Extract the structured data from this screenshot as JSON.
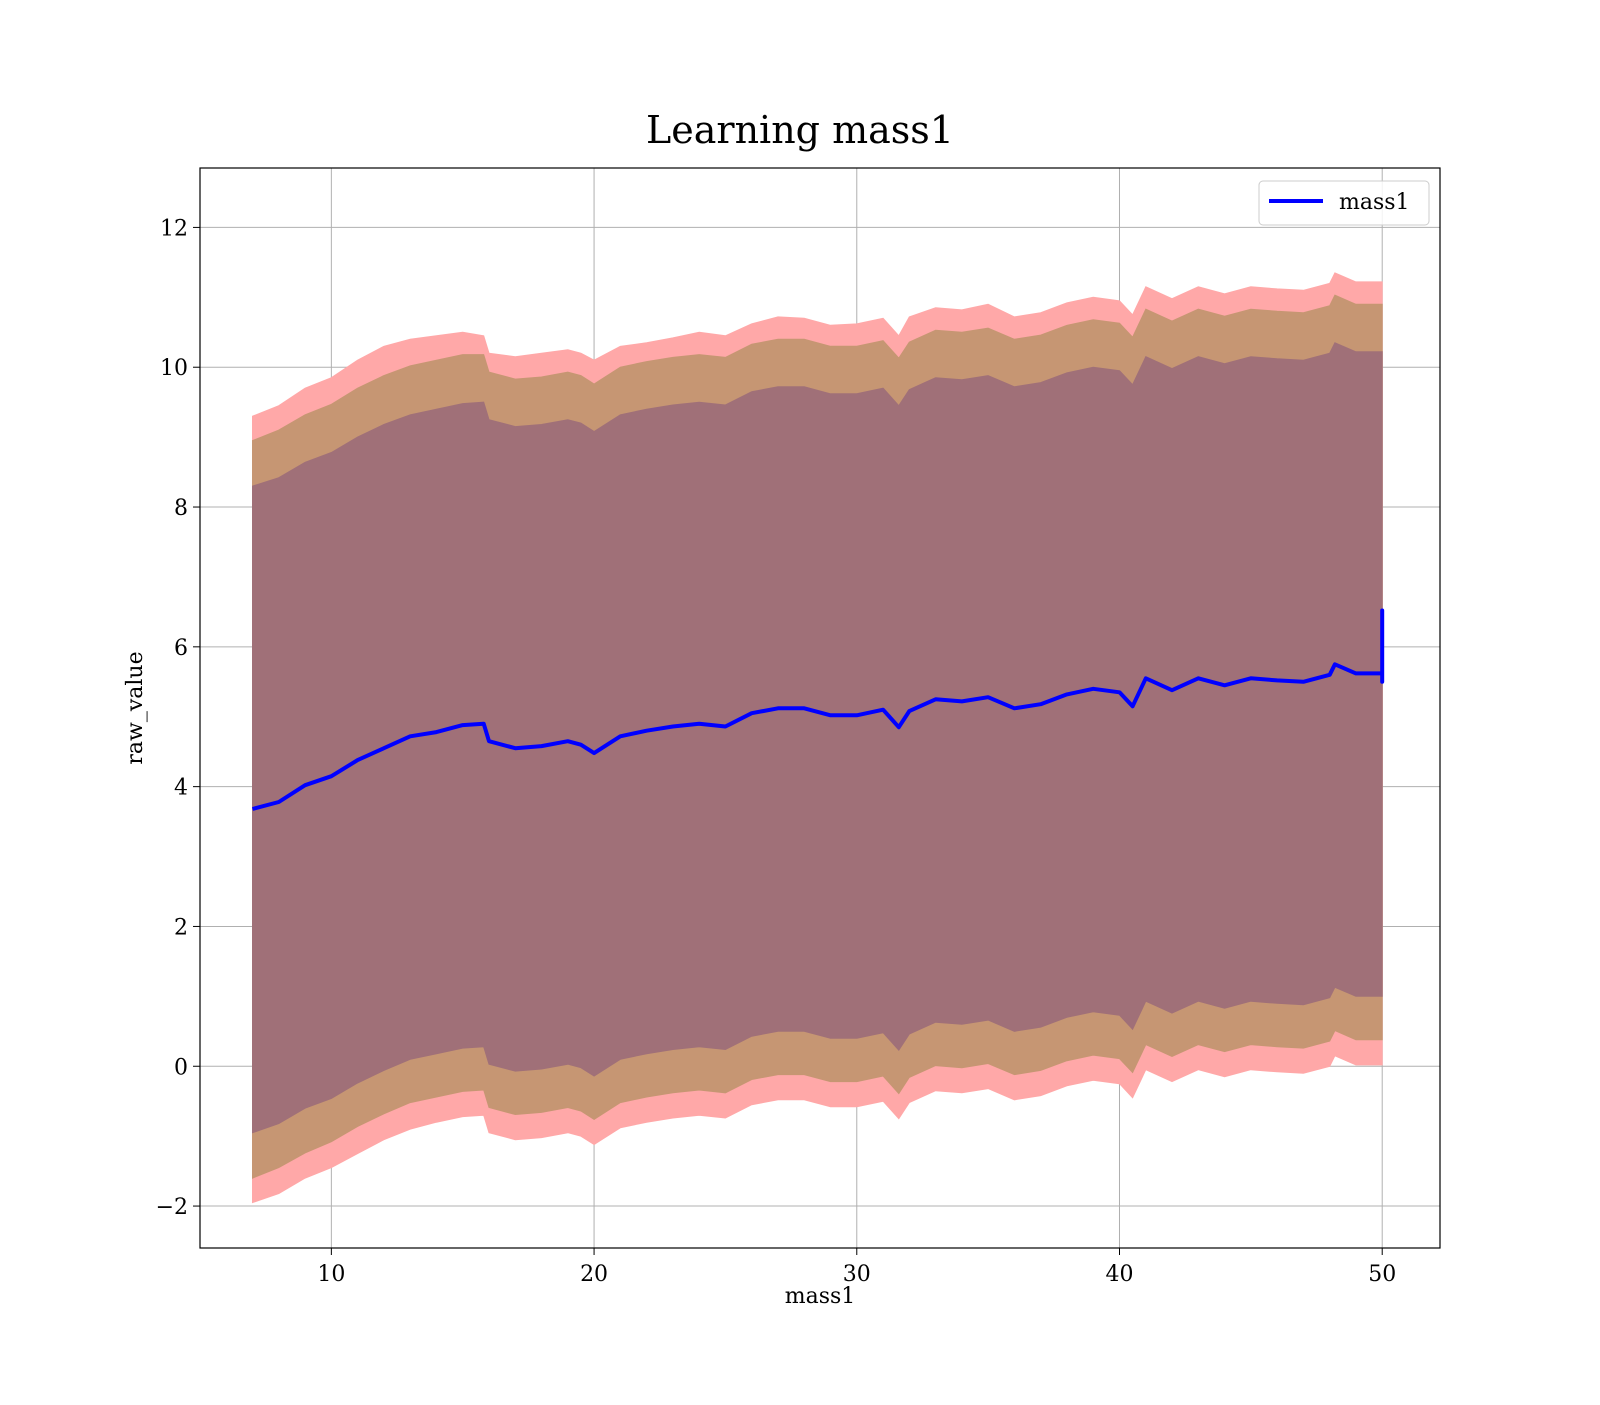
{
  "chart_data": {
    "type": "area",
    "title": "Learning mass1",
    "xlabel": "mass1",
    "ylabel": "raw_value",
    "xlim": [
      5,
      52.2
    ],
    "ylim": [
      -2.6,
      12.85
    ],
    "x_ticks": [
      10,
      20,
      30,
      40,
      50
    ],
    "y_ticks": [
      -2,
      0,
      2,
      4,
      6,
      8,
      10,
      12
    ],
    "x_tick_labels": [
      "10",
      "20",
      "30",
      "40",
      "50"
    ],
    "y_tick_labels": [
      "−2",
      "0",
      "2",
      "4",
      "6",
      "8",
      "10",
      "12"
    ],
    "grid": true,
    "legend": {
      "position": "upper right",
      "entries": [
        "mass1"
      ]
    },
    "colors": {
      "line": "#0000ff",
      "band_outer": "#ffa8a8",
      "band_middle": "#c69673",
      "band_inner": "#a07078"
    },
    "x": [
      7,
      8,
      9,
      10,
      11,
      12,
      13,
      14,
      15,
      15.8,
      16,
      17,
      18,
      19,
      19.5,
      20,
      21,
      22,
      23,
      24,
      25,
      26,
      27,
      28,
      29,
      30,
      31,
      31.6,
      32,
      33,
      34,
      35,
      36,
      37,
      38,
      39,
      40,
      40.5,
      41,
      42,
      43,
      44,
      45,
      46,
      47,
      48,
      48.2,
      49,
      50
    ],
    "series": [
      {
        "name": "mass1",
        "values": [
          3.68,
          3.78,
          4.02,
          4.15,
          4.38,
          4.55,
          4.72,
          4.78,
          4.88,
          4.9,
          4.65,
          4.55,
          4.58,
          4.65,
          4.6,
          4.48,
          4.72,
          4.8,
          4.86,
          4.9,
          4.86,
          5.05,
          5.12,
          5.12,
          5.02,
          5.02,
          5.1,
          4.85,
          5.08,
          5.25,
          5.22,
          5.28,
          5.12,
          5.18,
          5.32,
          5.4,
          5.35,
          5.15,
          5.55,
          5.38,
          5.55,
          5.45,
          5.55,
          5.52,
          5.5,
          5.6,
          5.75,
          5.62,
          5.62
        ]
      }
    ],
    "final_spike": {
      "x": 50,
      "values": [
        5.5,
        6.52,
        5.5
      ]
    },
    "bands": [
      {
        "name": "outer",
        "upper": [
          9.3,
          9.45,
          9.7,
          9.85,
          10.1,
          10.3,
          10.4,
          10.45,
          10.5,
          10.45,
          10.2,
          10.15,
          10.2,
          10.25,
          10.2,
          10.1,
          10.3,
          10.35,
          10.42,
          10.5,
          10.45,
          10.62,
          10.72,
          10.7,
          10.6,
          10.62,
          10.7,
          10.45,
          10.72,
          10.85,
          10.82,
          10.9,
          10.72,
          10.78,
          10.92,
          11.0,
          10.95,
          10.75,
          11.15,
          10.98,
          11.15,
          11.05,
          11.15,
          11.12,
          11.1,
          11.2,
          11.35,
          11.22,
          11.22
        ],
        "lower": [
          -1.95,
          -1.82,
          -1.6,
          -1.45,
          -1.25,
          -1.05,
          -0.9,
          -0.8,
          -0.72,
          -0.7,
          -0.95,
          -1.05,
          -1.02,
          -0.95,
          -1.0,
          -1.12,
          -0.88,
          -0.8,
          -0.74,
          -0.7,
          -0.74,
          -0.55,
          -0.48,
          -0.48,
          -0.58,
          -0.58,
          -0.5,
          -0.75,
          -0.52,
          -0.35,
          -0.38,
          -0.32,
          -0.48,
          -0.42,
          -0.28,
          -0.2,
          -0.25,
          -0.45,
          -0.05,
          -0.22,
          -0.05,
          -0.15,
          -0.05,
          -0.08,
          -0.1,
          0.0,
          0.15,
          0.02,
          0.02
        ]
      },
      {
        "name": "middle",
        "upper": [
          8.95,
          9.1,
          9.32,
          9.47,
          9.7,
          9.88,
          10.02,
          10.1,
          10.18,
          10.18,
          9.93,
          9.83,
          9.86,
          9.93,
          9.88,
          9.76,
          10.0,
          10.08,
          10.14,
          10.18,
          10.14,
          10.33,
          10.4,
          10.4,
          10.3,
          10.3,
          10.38,
          10.13,
          10.36,
          10.53,
          10.5,
          10.56,
          10.4,
          10.46,
          10.6,
          10.68,
          10.63,
          10.43,
          10.83,
          10.66,
          10.83,
          10.73,
          10.83,
          10.8,
          10.78,
          10.88,
          11.03,
          10.9,
          10.9
        ],
        "lower": [
          -1.6,
          -1.45,
          -1.24,
          -1.08,
          -0.86,
          -0.68,
          -0.52,
          -0.44,
          -0.36,
          -0.34,
          -0.59,
          -0.69,
          -0.66,
          -0.59,
          -0.64,
          -0.76,
          -0.52,
          -0.44,
          -0.38,
          -0.34,
          -0.38,
          -0.19,
          -0.12,
          -0.12,
          -0.22,
          -0.22,
          -0.14,
          -0.39,
          -0.16,
          0.01,
          -0.02,
          0.04,
          -0.12,
          -0.06,
          0.08,
          0.16,
          0.11,
          -0.09,
          0.31,
          0.14,
          0.31,
          0.21,
          0.31,
          0.28,
          0.26,
          0.36,
          0.51,
          0.38,
          0.38
        ]
      },
      {
        "name": "inner",
        "upper": [
          8.3,
          8.42,
          8.64,
          8.78,
          9.0,
          9.18,
          9.32,
          9.4,
          9.48,
          9.5,
          9.25,
          9.15,
          9.18,
          9.25,
          9.2,
          9.08,
          9.32,
          9.4,
          9.46,
          9.5,
          9.46,
          9.65,
          9.72,
          9.72,
          9.62,
          9.62,
          9.7,
          9.45,
          9.68,
          9.85,
          9.82,
          9.88,
          9.72,
          9.78,
          9.92,
          10.0,
          9.95,
          9.75,
          10.15,
          9.98,
          10.15,
          10.05,
          10.15,
          10.12,
          10.1,
          10.2,
          10.35,
          10.22,
          10.22
        ],
        "lower": [
          -0.95,
          -0.82,
          -0.6,
          -0.46,
          -0.24,
          -0.06,
          0.1,
          0.18,
          0.26,
          0.28,
          0.03,
          -0.07,
          -0.04,
          0.03,
          -0.02,
          -0.14,
          0.1,
          0.18,
          0.24,
          0.28,
          0.24,
          0.43,
          0.5,
          0.5,
          0.4,
          0.4,
          0.48,
          0.23,
          0.46,
          0.63,
          0.6,
          0.66,
          0.5,
          0.56,
          0.7,
          0.78,
          0.73,
          0.53,
          0.93,
          0.76,
          0.93,
          0.83,
          0.93,
          0.9,
          0.88,
          0.98,
          1.13,
          1.0,
          1.0
        ]
      }
    ]
  }
}
